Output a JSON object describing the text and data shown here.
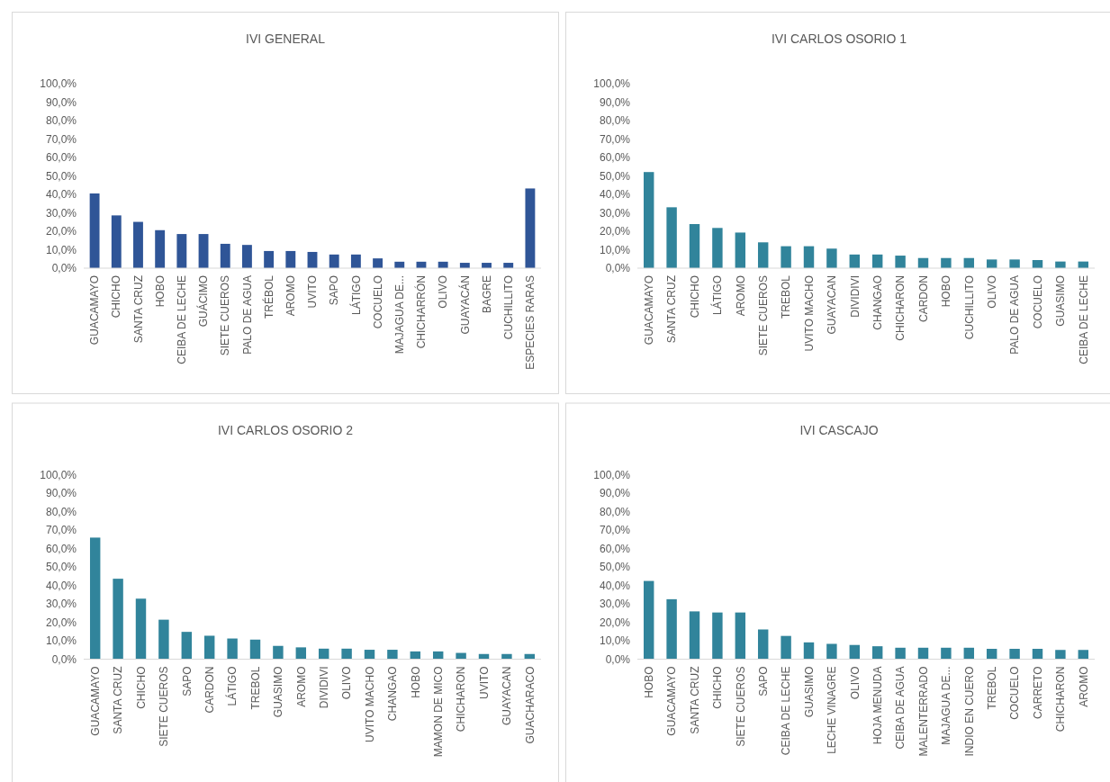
{
  "chart_data": [
    {
      "type": "bar",
      "title": "IVI  GENERAL",
      "categories": [
        "GUACAMAYO",
        "CHICHO",
        "SANTA CRUZ",
        "HOBO",
        "CEIBA DE LECHE",
        "GUÁCIMO",
        "SIETE CUEROS",
        "PALO DE AGUA",
        "TRÉBOL",
        "AROMO",
        "UVITO",
        "SAPO",
        "LÁTIGO",
        "COCUELO",
        "MAJAGUA DE...",
        "CHICHARRÓN",
        "OLIVO",
        "GUAYACÁN",
        "BAGRE",
        "CUCHILLITO",
        "ESPECIES RARAS"
      ],
      "values": [
        40.5,
        28.6,
        25.1,
        20.6,
        18.5,
        18.5,
        13.2,
        12.6,
        9.3,
        9.3,
        8.8,
        7.4,
        7.4,
        5.3,
        3.5,
        3.5,
        3.5,
        2.9,
        2.9,
        2.9,
        43.2
      ],
      "color": "#2f5597",
      "ylim": [
        0,
        100
      ],
      "yticks": [
        {
          "value": 0,
          "label": "0,0%"
        },
        {
          "value": 10,
          "label": "10,0%"
        },
        {
          "value": 20,
          "label": "20,0%"
        },
        {
          "value": 30,
          "label": "30,0%"
        },
        {
          "value": 40,
          "label": "40,0%"
        },
        {
          "value": 50,
          "label": "50,0%"
        },
        {
          "value": 60,
          "label": "60,0%"
        },
        {
          "value": 70,
          "label": "70,0%"
        },
        {
          "value": 80,
          "label": "80,0%"
        },
        {
          "value": 90,
          "label": "90,0%"
        },
        {
          "value": 100,
          "label": "100,0%"
        }
      ]
    },
    {
      "type": "bar",
      "title": "IVI  CARLOS OSORIO 1",
      "categories": [
        "GUACAMAYO",
        "SANTA CRUZ",
        "CHICHO",
        "LÁTIGO",
        "AROMO",
        "SIETE CUEROS",
        "TREBOL",
        "UVITO MACHO",
        "GUAYACAN",
        "DIVIDIVI",
        "CHANGAO",
        "CHICHARON",
        "CARDON",
        "HOBO",
        "CUCHILLITO",
        "OLIVO",
        "PALO DE  AGUA",
        "COCUELO",
        "GUASIMO",
        "CEIBA DE LECHE"
      ],
      "values": [
        52.1,
        33.0,
        23.9,
        21.8,
        19.3,
        14.0,
        11.9,
        11.9,
        10.6,
        7.4,
        7.4,
        6.8,
        5.5,
        5.5,
        5.5,
        4.7,
        4.7,
        4.4,
        3.6,
        3.6
      ],
      "color": "#31849b",
      "ylim": [
        0,
        100
      ],
      "yticks": [
        {
          "value": 0,
          "label": "0,0%"
        },
        {
          "value": 10,
          "label": "10,0%"
        },
        {
          "value": 20,
          "label": "20,0%"
        },
        {
          "value": 30,
          "label": "30,0%"
        },
        {
          "value": 40,
          "label": "40,0%"
        },
        {
          "value": 50,
          "label": "50,0%"
        },
        {
          "value": 60,
          "label": "60,0%"
        },
        {
          "value": 70,
          "label": "70,0%"
        },
        {
          "value": 80,
          "label": "80,0%"
        },
        {
          "value": 90,
          "label": "90,0%"
        },
        {
          "value": 100,
          "label": "100,0%"
        }
      ]
    },
    {
      "type": "bar",
      "title": "IVI  CARLOS OSORIO 2",
      "categories": [
        "GUACAMAYO",
        "SANTA CRUZ",
        "CHICHO",
        "SIETE CUEROS",
        "SAPO",
        "CARDON",
        "LÁTIGO",
        "TREBOL",
        "GUASIMO",
        "AROMO",
        "DIVIDIVI",
        "OLIVO",
        "UVITO MACHO",
        "CHANGAO",
        "HOBO",
        "MAMON DE MICO",
        "CHICHARON",
        "UVITO",
        "GUAYACAN",
        "GUACHARACO"
      ],
      "values": [
        65.9,
        43.6,
        32.8,
        21.4,
        14.8,
        12.7,
        11.2,
        10.6,
        7.2,
        6.4,
        5.7,
        5.7,
        5.1,
        5.1,
        4.2,
        4.2,
        3.4,
        2.8,
        2.8,
        2.8
      ],
      "color": "#31849b",
      "ylim": [
        0,
        100
      ],
      "yticks": [
        {
          "value": 0,
          "label": "0,0%"
        },
        {
          "value": 10,
          "label": "10,0%"
        },
        {
          "value": 20,
          "label": "20,0%"
        },
        {
          "value": 30,
          "label": "30,0%"
        },
        {
          "value": 40,
          "label": "40,0%"
        },
        {
          "value": 50,
          "label": "50,0%"
        },
        {
          "value": 60,
          "label": "60,0%"
        },
        {
          "value": 70,
          "label": "70,0%"
        },
        {
          "value": 80,
          "label": "80,0%"
        },
        {
          "value": 90,
          "label": "90,0%"
        },
        {
          "value": 100,
          "label": "100,0%"
        }
      ]
    },
    {
      "type": "bar",
      "title": "IVI  CASCAJO",
      "categories": [
        "HOBO",
        "GUACAMAYO",
        "SANTA CRUZ",
        "CHICHO",
        "SIETE CUEROS",
        "SAPO",
        "CEIBA DE LECHE",
        "GUASIMO",
        "LECHE VINAGRE",
        "OLIVO",
        "HOJA MENUDA",
        "CEIBA DE AGUA",
        "MALENTERRADO",
        "MAJAGUA DE...",
        "INDIO EN CUERO",
        "TREBOL",
        "COCUELO",
        "CARRETO",
        "CHICHARON",
        "AROMO"
      ],
      "values": [
        42.4,
        32.5,
        25.9,
        25.3,
        25.3,
        16.1,
        12.6,
        9.1,
        8.3,
        7.7,
        7.0,
        6.2,
        6.2,
        6.2,
        6.2,
        5.6,
        5.6,
        5.6,
        5.0,
        5.0
      ],
      "color": "#31849b",
      "ylim": [
        0,
        100
      ],
      "yticks": [
        {
          "value": 0,
          "label": "0,0%"
        },
        {
          "value": 10,
          "label": "10,0%"
        },
        {
          "value": 20,
          "label": "20,0%"
        },
        {
          "value": 30,
          "label": "30,0%"
        },
        {
          "value": 40,
          "label": "40,0%"
        },
        {
          "value": 50,
          "label": "50,0%"
        },
        {
          "value": 60,
          "label": "60,0%"
        },
        {
          "value": 70,
          "label": "70,0%"
        },
        {
          "value": 80,
          "label": "80,0%"
        },
        {
          "value": 90,
          "label": "90,0%"
        },
        {
          "value": 100,
          "label": "100,0%"
        }
      ]
    }
  ]
}
